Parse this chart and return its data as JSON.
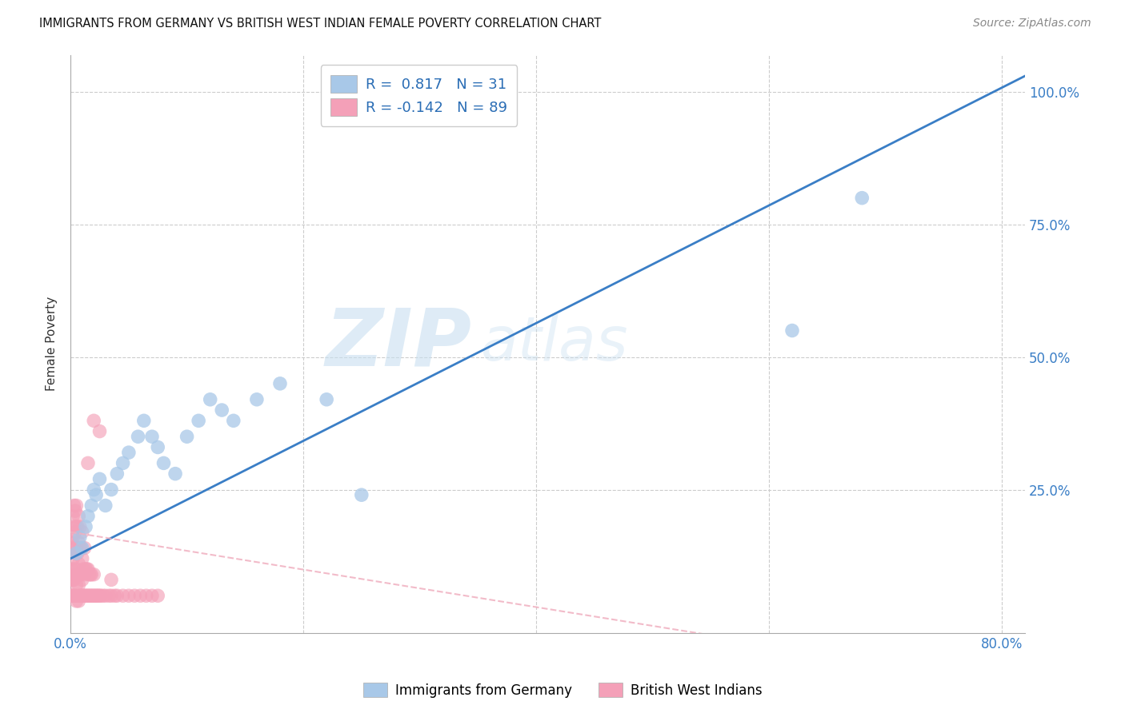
{
  "title": "IMMIGRANTS FROM GERMANY VS BRITISH WEST INDIAN FEMALE POVERTY CORRELATION CHART",
  "source": "Source: ZipAtlas.com",
  "ylabel": "Female Poverty",
  "xlim": [
    0.0,
    0.82
  ],
  "ylim": [
    -0.02,
    1.07
  ],
  "blue_color": "#a8c8e8",
  "pink_color": "#f4a0b8",
  "blue_line_color": "#3a7ec6",
  "pink_line_color": "#f0b0c0",
  "r_blue": 0.817,
  "n_blue": 31,
  "r_pink": -0.142,
  "n_pink": 89,
  "watermark_zip": "ZIP",
  "watermark_atlas": "atlas",
  "legend_label_blue": "Immigrants from Germany",
  "legend_label_pink": "British West Indians",
  "blue_scatter_x": [
    0.005,
    0.008,
    0.01,
    0.013,
    0.015,
    0.018,
    0.02,
    0.022,
    0.025,
    0.03,
    0.035,
    0.04,
    0.045,
    0.05,
    0.058,
    0.063,
    0.07,
    0.075,
    0.08,
    0.09,
    0.1,
    0.11,
    0.12,
    0.13,
    0.14,
    0.16,
    0.18,
    0.22,
    0.25,
    0.62,
    0.68
  ],
  "blue_scatter_y": [
    0.13,
    0.16,
    0.14,
    0.18,
    0.2,
    0.22,
    0.25,
    0.24,
    0.27,
    0.22,
    0.25,
    0.28,
    0.3,
    0.32,
    0.35,
    0.38,
    0.35,
    0.33,
    0.3,
    0.28,
    0.35,
    0.38,
    0.42,
    0.4,
    0.38,
    0.42,
    0.45,
    0.42,
    0.24,
    0.55,
    0.8
  ],
  "pink_scatter_x": [
    0.001,
    0.001,
    0.001,
    0.001,
    0.002,
    0.002,
    0.002,
    0.002,
    0.002,
    0.003,
    0.003,
    0.003,
    0.003,
    0.003,
    0.003,
    0.004,
    0.004,
    0.004,
    0.004,
    0.004,
    0.005,
    0.005,
    0.005,
    0.005,
    0.005,
    0.005,
    0.006,
    0.006,
    0.006,
    0.006,
    0.007,
    0.007,
    0.007,
    0.007,
    0.007,
    0.008,
    0.008,
    0.008,
    0.008,
    0.009,
    0.009,
    0.009,
    0.01,
    0.01,
    0.01,
    0.01,
    0.011,
    0.011,
    0.012,
    0.012,
    0.012,
    0.013,
    0.013,
    0.014,
    0.014,
    0.015,
    0.015,
    0.016,
    0.016,
    0.017,
    0.017,
    0.018,
    0.018,
    0.019,
    0.02,
    0.02,
    0.021,
    0.022,
    0.023,
    0.024,
    0.025,
    0.026,
    0.028,
    0.03,
    0.033,
    0.035,
    0.038,
    0.04,
    0.045,
    0.05,
    0.055,
    0.06,
    0.065,
    0.07,
    0.075,
    0.025,
    0.035,
    0.02,
    0.015
  ],
  "pink_scatter_y": [
    0.05,
    0.08,
    0.1,
    0.15,
    0.05,
    0.08,
    0.12,
    0.16,
    0.2,
    0.05,
    0.08,
    0.1,
    0.14,
    0.18,
    0.22,
    0.05,
    0.09,
    0.13,
    0.17,
    0.21,
    0.04,
    0.07,
    0.1,
    0.14,
    0.18,
    0.22,
    0.05,
    0.09,
    0.13,
    0.18,
    0.04,
    0.07,
    0.11,
    0.15,
    0.2,
    0.05,
    0.09,
    0.14,
    0.18,
    0.05,
    0.09,
    0.14,
    0.05,
    0.08,
    0.12,
    0.17,
    0.05,
    0.1,
    0.05,
    0.09,
    0.14,
    0.05,
    0.1,
    0.05,
    0.1,
    0.05,
    0.1,
    0.05,
    0.09,
    0.05,
    0.09,
    0.05,
    0.09,
    0.05,
    0.05,
    0.09,
    0.05,
    0.05,
    0.05,
    0.05,
    0.05,
    0.05,
    0.05,
    0.05,
    0.05,
    0.05,
    0.05,
    0.05,
    0.05,
    0.05,
    0.05,
    0.05,
    0.05,
    0.05,
    0.05,
    0.36,
    0.08,
    0.38,
    0.3
  ]
}
